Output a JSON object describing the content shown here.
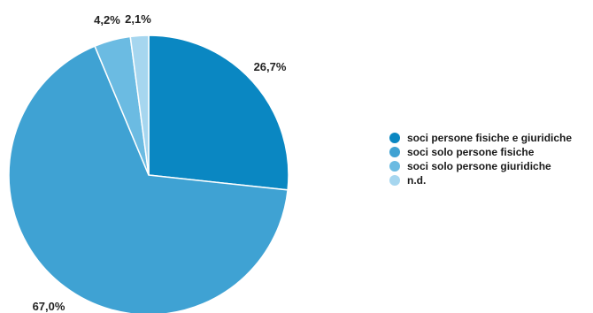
{
  "chart_data": {
    "type": "pie",
    "title": "",
    "slices": [
      {
        "label": "soci persone fisiche e giuridiche",
        "value": 26.7,
        "display": "26,7%",
        "color": "#0a87c2"
      },
      {
        "label": "soci solo persone fisiche",
        "value": 67.0,
        "display": "67,0%",
        "color": "#3fa2d3"
      },
      {
        "label": "soci solo persone giuridiche",
        "value": 4.2,
        "display": "4,2%",
        "color": "#6bbbe2"
      },
      {
        "label": "n.d.",
        "value": 2.1,
        "display": "2,1%",
        "color": "#a6d6ef"
      }
    ],
    "start_angle_deg": 0,
    "direction": "clockwise",
    "legend_position": "right"
  }
}
